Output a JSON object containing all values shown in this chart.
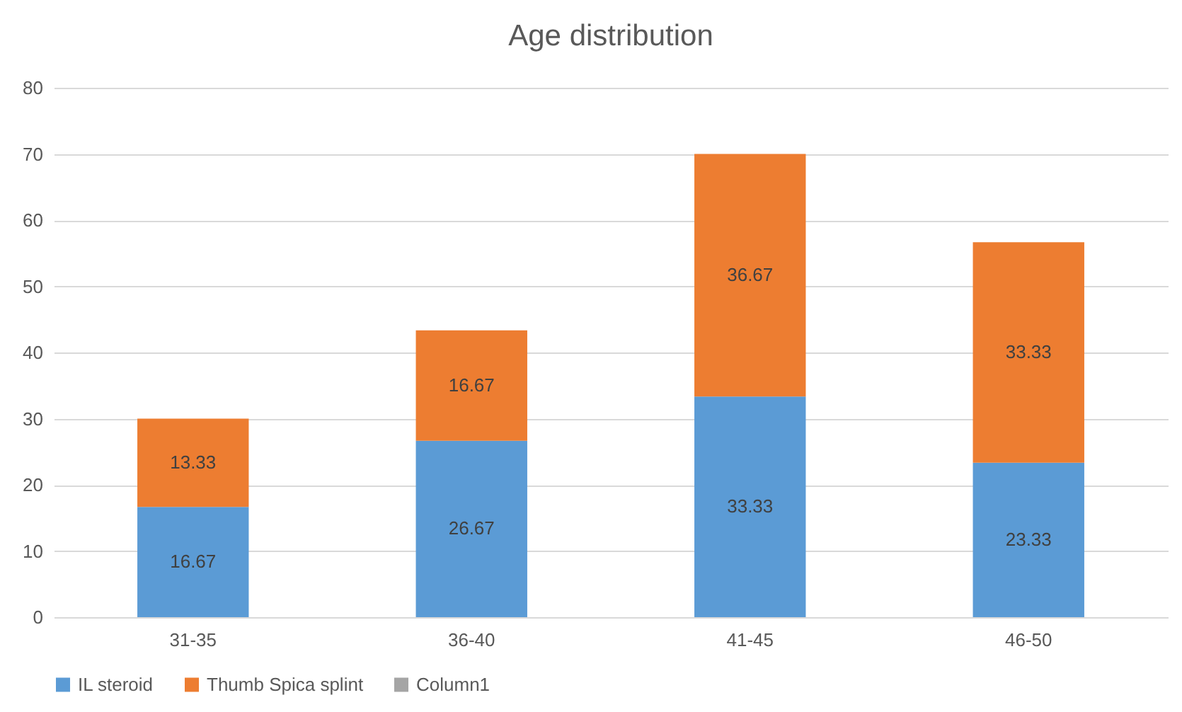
{
  "chart_data": {
    "type": "bar",
    "title": "Age distribution",
    "stacked": true,
    "categories": [
      "31-35",
      "36-40",
      "41-45",
      "46-50"
    ],
    "series": [
      {
        "name": "IL steroid",
        "color": "#5b9bd5",
        "values": [
          16.67,
          26.67,
          33.33,
          23.33
        ]
      },
      {
        "name": "Thumb Spica splint",
        "color": "#ed7d31",
        "values": [
          13.33,
          16.67,
          36.67,
          33.33
        ]
      },
      {
        "name": "Column1",
        "color": "#a5a5a5",
        "values": [
          null,
          null,
          null,
          null
        ]
      }
    ],
    "ylim": [
      0,
      80
    ],
    "yticks": [
      0,
      10,
      20,
      30,
      40,
      50,
      60,
      70,
      80
    ],
    "grid": "y",
    "legend": "bottom",
    "data_labels": true
  }
}
